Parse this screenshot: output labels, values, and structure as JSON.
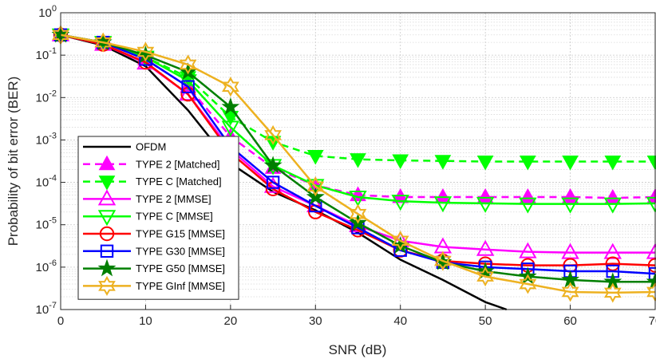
{
  "chart_data": {
    "type": "line",
    "title": "",
    "xlabel": "SNR (dB)",
    "ylabel": "Probability of bit error (BER)",
    "xlim": [
      0,
      70
    ],
    "ylim": [
      1e-07,
      1
    ],
    "yscale": "log",
    "grid": true,
    "minor_grid": true,
    "legend_position": "bottom-left",
    "x_ticks": [
      "0",
      "10",
      "20",
      "30",
      "40",
      "50",
      "60",
      "70"
    ],
    "y_ticks": [
      {
        "base": "10",
        "exp": "0"
      },
      {
        "base": "10",
        "exp": "-1"
      },
      {
        "base": "10",
        "exp": "-2"
      },
      {
        "base": "10",
        "exp": "-3"
      },
      {
        "base": "10",
        "exp": "-4"
      },
      {
        "base": "10",
        "exp": "-5"
      },
      {
        "base": "10",
        "exp": "-6"
      },
      {
        "base": "10",
        "exp": "-7"
      }
    ],
    "series": [
      {
        "name": "OFDM",
        "color": "#000000",
        "dash": "solid",
        "marker": "none",
        "x": [
          0,
          5,
          10,
          15,
          20,
          25,
          30,
          35,
          40,
          45,
          50,
          52.5
        ],
        "y": [
          0.3,
          0.17,
          0.055,
          0.005,
          0.00028,
          6e-05,
          2.2e-05,
          6.5e-06,
          1.5e-06,
          5e-07,
          1.5e-07,
          1e-07
        ]
      },
      {
        "name": "TYPE 2 [Matched]",
        "color": "#ff00ff",
        "dash": "dashed",
        "marker": "triangle-up-filled",
        "x": [
          0,
          5,
          10,
          15,
          20,
          25,
          30,
          35,
          40,
          45,
          50,
          55,
          60,
          65,
          70
        ],
        "y": [
          0.3,
          0.2,
          0.08,
          0.018,
          0.0012,
          0.00022,
          8.5e-05,
          5e-05,
          4.5e-05,
          4.5e-05,
          4.5e-05,
          4.5e-05,
          4.5e-05,
          4.3e-05,
          4.5e-05
        ]
      },
      {
        "name": "TYPE C [Matched]",
        "color": "#00ff00",
        "dash": "dashed",
        "marker": "triangle-down-filled",
        "x": [
          0,
          5,
          10,
          15,
          20,
          25,
          30,
          35,
          40,
          45,
          50,
          55,
          60,
          65,
          70
        ],
        "y": [
          0.3,
          0.2,
          0.09,
          0.03,
          0.0035,
          0.0009,
          0.00042,
          0.00035,
          0.00033,
          0.00032,
          0.00031,
          0.00031,
          0.00031,
          0.00031,
          0.00031
        ]
      },
      {
        "name": "TYPE 2 [MMSE]",
        "color": "#ff00ff",
        "dash": "solid",
        "marker": "triangle-up-open",
        "x": [
          0,
          5,
          10,
          15,
          20,
          25,
          30,
          35,
          40,
          45,
          50,
          55,
          60,
          65,
          70
        ],
        "y": [
          0.3,
          0.18,
          0.065,
          0.012,
          0.0006,
          8e-05,
          2.8e-05,
          9.5e-06,
          4.2e-06,
          3e-06,
          2.6e-06,
          2.3e-06,
          2.2e-06,
          2.2e-06,
          2.2e-06
        ]
      },
      {
        "name": "TYPE C [MMSE]",
        "color": "#00ff00",
        "dash": "solid",
        "marker": "triangle-down-open",
        "x": [
          0,
          5,
          10,
          15,
          20,
          25,
          30,
          35,
          40,
          45,
          50,
          55,
          60,
          65,
          70
        ],
        "y": [
          0.3,
          0.2,
          0.09,
          0.025,
          0.002,
          0.00025,
          8.5e-05,
          4.5e-05,
          3.6e-05,
          3.3e-05,
          3.2e-05,
          3.1e-05,
          3.1e-05,
          3.1e-05,
          3.2e-05
        ]
      },
      {
        "name": "TYPE G15 [MMSE]",
        "color": "#ff0000",
        "dash": "solid",
        "marker": "circle-open",
        "x": [
          0,
          5,
          10,
          15,
          20,
          25,
          30,
          35,
          40,
          45,
          50,
          55,
          60,
          65,
          70
        ],
        "y": [
          0.3,
          0.18,
          0.068,
          0.012,
          0.0005,
          7e-05,
          2e-05,
          7.5e-06,
          2.5e-06,
          1.4e-06,
          1.2e-06,
          1.1e-06,
          1.1e-06,
          1.2e-06,
          1.1e-06
        ]
      },
      {
        "name": "TYPE G30 [MMSE]",
        "color": "#0000ff",
        "dash": "solid",
        "marker": "square-open",
        "x": [
          0,
          5,
          10,
          15,
          20,
          25,
          30,
          35,
          40,
          45,
          50,
          55,
          60,
          65,
          70
        ],
        "y": [
          0.3,
          0.2,
          0.08,
          0.018,
          0.0007,
          0.0001,
          2.8e-05,
          8.5e-06,
          2.5e-06,
          1.3e-06,
          1e-06,
          9e-07,
          8e-07,
          8e-07,
          7e-07
        ]
      },
      {
        "name": "TYPE G50 [MMSE]",
        "color": "#007f00",
        "dash": "solid",
        "marker": "pentagram-filled",
        "x": [
          0,
          5,
          10,
          15,
          20,
          25,
          30,
          35,
          40,
          45,
          50,
          55,
          60,
          65,
          70
        ],
        "y": [
          0.3,
          0.2,
          0.1,
          0.04,
          0.006,
          0.00025,
          4.5e-05,
          1.1e-05,
          3.2e-06,
          1.3e-06,
          8e-07,
          6e-07,
          5e-07,
          4.5e-07,
          4.5e-07
        ]
      },
      {
        "name": "TYPE GInf [MMSE]",
        "color": "#edb120",
        "dash": "solid",
        "marker": "hexagram-open",
        "x": [
          0,
          5,
          10,
          15,
          20,
          25,
          30,
          35,
          40,
          45,
          50,
          55,
          60,
          65,
          70
        ],
        "y": [
          0.3,
          0.2,
          0.12,
          0.06,
          0.018,
          0.0013,
          8e-05,
          1.8e-05,
          4.2e-06,
          1.4e-06,
          6e-07,
          4e-07,
          2.6e-07,
          2.5e-07,
          2.6e-07
        ]
      }
    ]
  }
}
